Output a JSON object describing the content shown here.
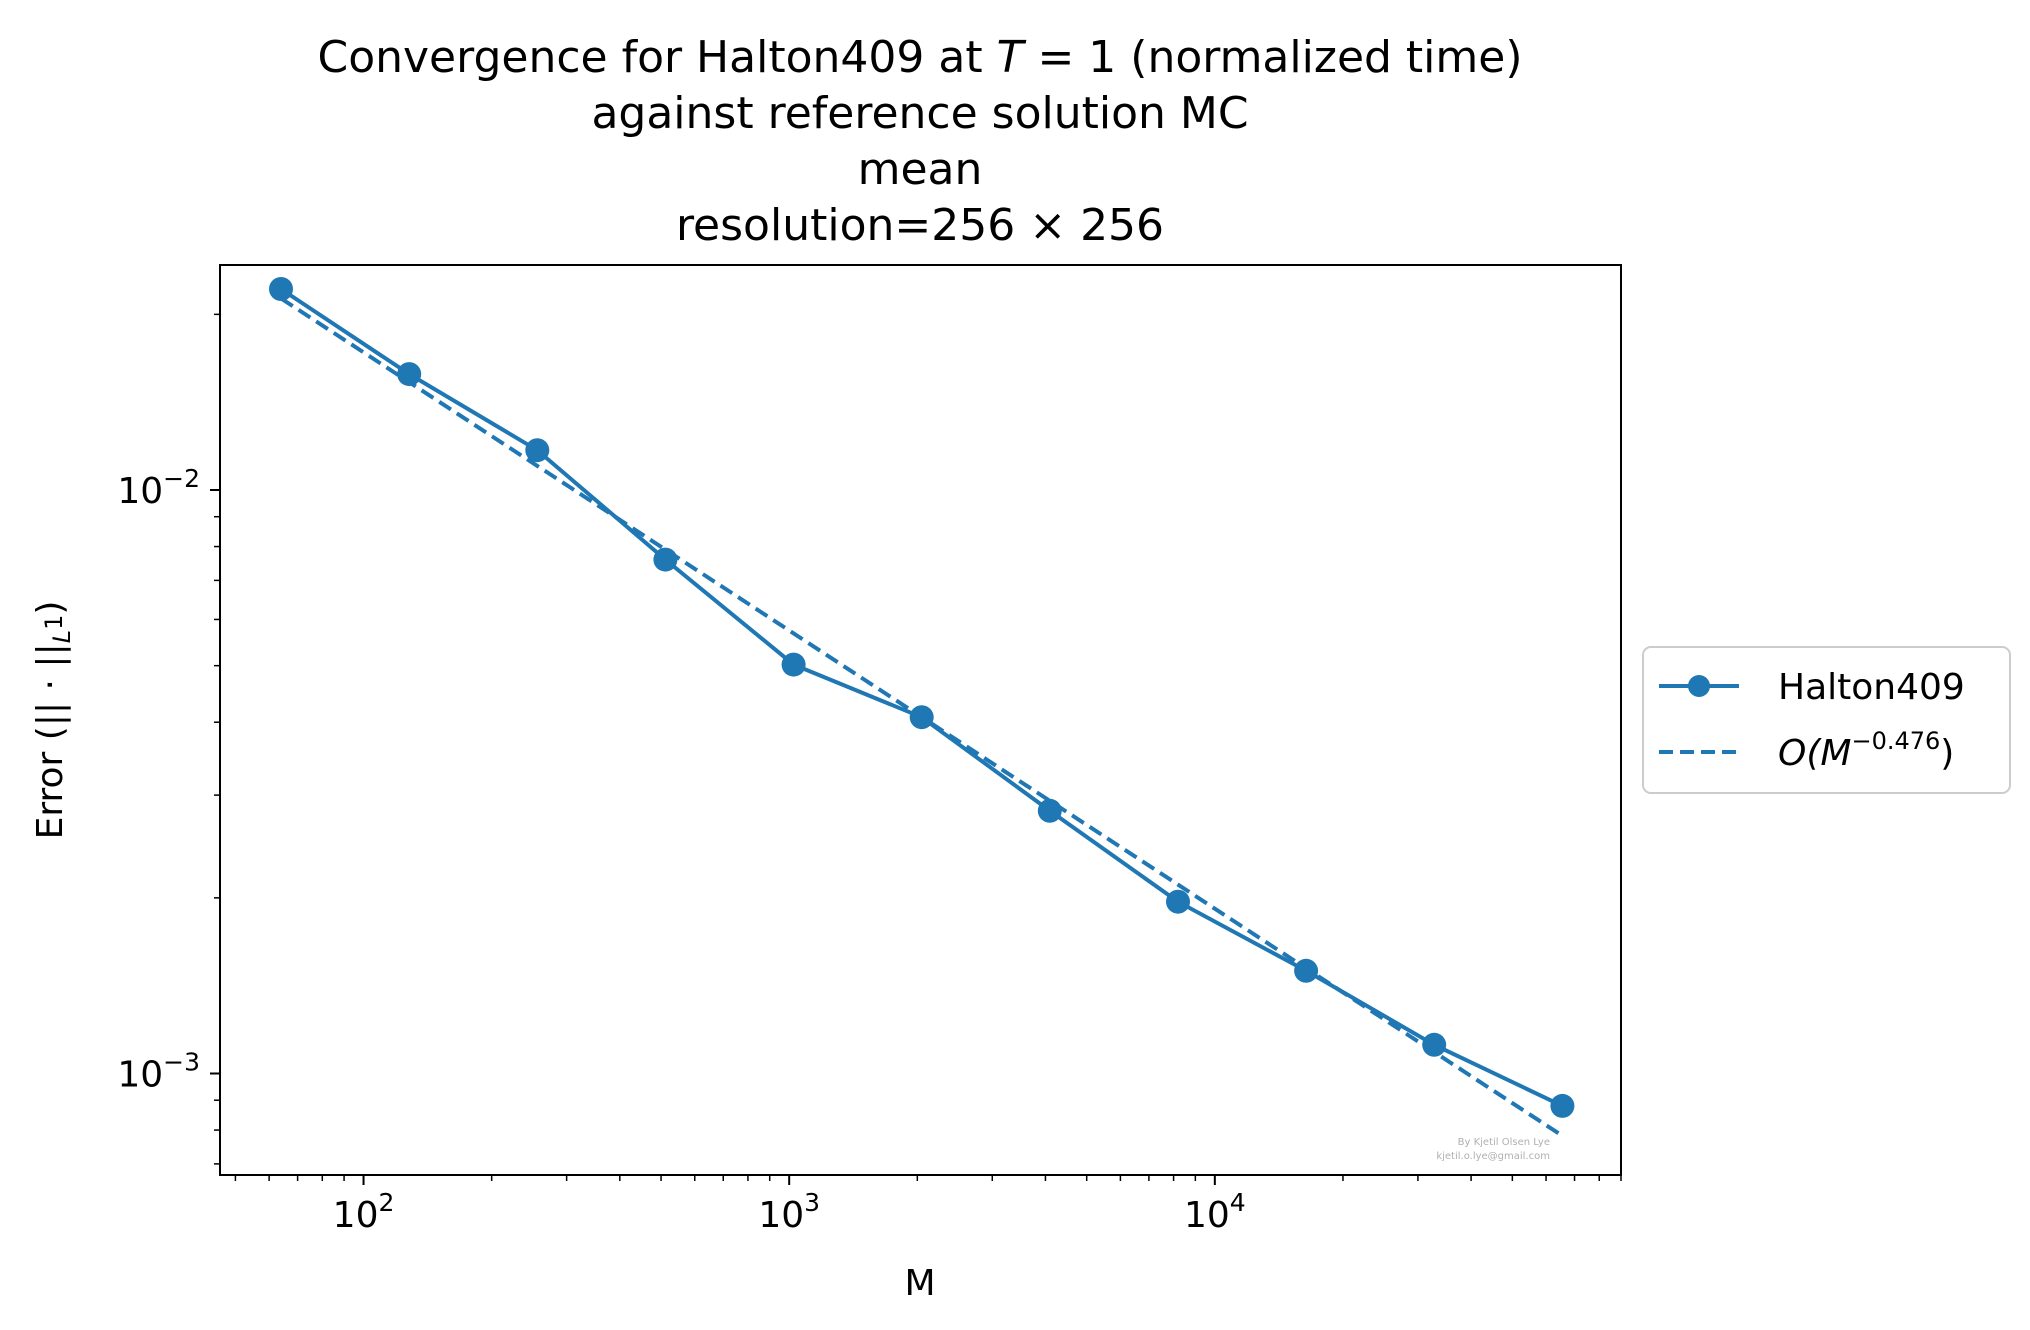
{
  "chart_data": {
    "type": "line",
    "title": {
      "line1_prefix": "Convergence for Halton409 at ",
      "line1_var": "T",
      "line1_eq": " = 1",
      "line1_suffix": " (normalized time)",
      "line2": "against reference solution MC",
      "line3": "mean",
      "line4_prefix": "resolution=256",
      "line4_times": " × ",
      "line4_suffix": "256"
    },
    "xlabel": "M",
    "ylabel": {
      "prefix": "Error (||",
      "dot": " · ",
      "norm": "||",
      "sub": "L",
      "subsup": "1",
      "suffix": ")"
    },
    "x_scale": "log",
    "y_scale": "log",
    "xlim": [
      46,
      90000
    ],
    "ylim": [
      0.00067,
      0.0243
    ],
    "x_ticks": [
      {
        "value": 100,
        "base": "10",
        "exp": "2"
      },
      {
        "value": 1000,
        "base": "10",
        "exp": "3"
      },
      {
        "value": 10000,
        "base": "10",
        "exp": "4"
      }
    ],
    "y_ticks": [
      {
        "value": 0.001,
        "base": "10",
        "exp": "−3"
      },
      {
        "value": 0.01,
        "base": "10",
        "exp": "−2"
      }
    ],
    "grid": false,
    "legend_position": "outside-right",
    "color": "#1f77b4",
    "series": [
      {
        "name": "Halton409",
        "style": "solid-marker",
        "x": [
          64,
          128,
          256,
          512,
          1024,
          2048,
          4096,
          8192,
          16384,
          32768,
          65536
        ],
        "y": [
          0.0221,
          0.0158,
          0.0117,
          0.0076,
          0.00502,
          0.00408,
          0.00282,
          0.00197,
          0.0015,
          0.00112,
          0.00088
        ]
      },
      {
        "name_prefix": "O(",
        "name_var": "M",
        "name_exp": "−0.476",
        "name_suffix": ")",
        "style": "dashed",
        "x": [
          64,
          65536
        ],
        "y": [
          0.0213,
          0.000782
        ]
      }
    ],
    "watermark": [
      "By Kjetil Olsen Lye",
      "kjetil.o.lye@gmail.com"
    ]
  }
}
